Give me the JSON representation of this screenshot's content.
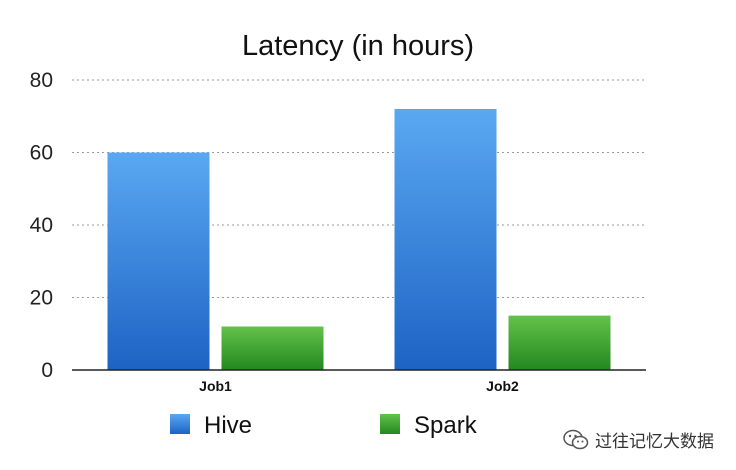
{
  "chart_data": {
    "type": "bar",
    "title": "Latency (in hours)",
    "categories": [
      "Job1",
      "Job2"
    ],
    "series": [
      {
        "name": "Hive",
        "values": [
          60,
          72
        ]
      },
      {
        "name": "Spark",
        "values": [
          12,
          15
        ]
      }
    ],
    "ylim": [
      0,
      80
    ],
    "yticks": [
      0,
      20,
      40,
      60,
      80
    ],
    "grid": true,
    "legend_position": "bottom",
    "colors": {
      "Hive": {
        "top": "#5aa8f2",
        "bottom": "#1d63c4"
      },
      "Spark": {
        "top": "#64c24a",
        "bottom": "#22881f"
      }
    }
  },
  "watermark": {
    "text": "过往记忆大数据",
    "icon": "wechat-icon"
  }
}
